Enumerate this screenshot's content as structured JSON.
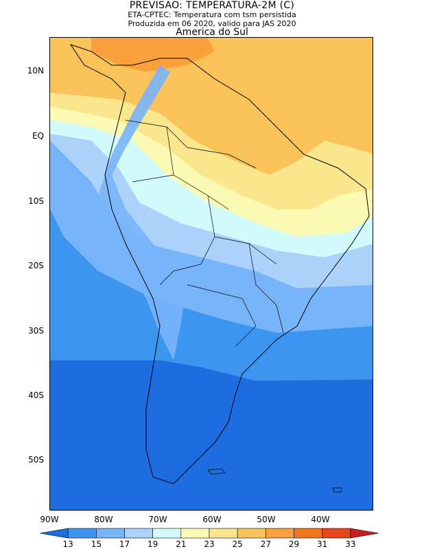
{
  "title": {
    "line1": "PREVISAO: TEMPERATURA-2M (C)",
    "line2": "ETA-CPTEC: Temperatura com tsm persistida",
    "line3": "Produzida em 06 2020, valido para JAS 2020",
    "region": "America do Sul"
  },
  "map": {
    "lat_labels": [
      "10N",
      "EQ",
      "10S",
      "20S",
      "30S",
      "40S",
      "50S"
    ],
    "lon_labels": [
      "90W",
      "80W",
      "70W",
      "60W",
      "50W",
      "40W"
    ],
    "variable": "2m temperature",
    "units": "C"
  },
  "colorbar": {
    "levels": [
      "13",
      "15",
      "17",
      "19",
      "21",
      "23",
      "25",
      "27",
      "29",
      "31",
      "33"
    ],
    "colors": [
      "#1e6de0",
      "#3c96f0",
      "#78b4fa",
      "#aad2fa",
      "#d2fafa",
      "#fafab4",
      "#fae68c",
      "#fac35a",
      "#faa03c",
      "#f0781e",
      "#e6461e",
      "#c81e1e"
    ]
  }
}
